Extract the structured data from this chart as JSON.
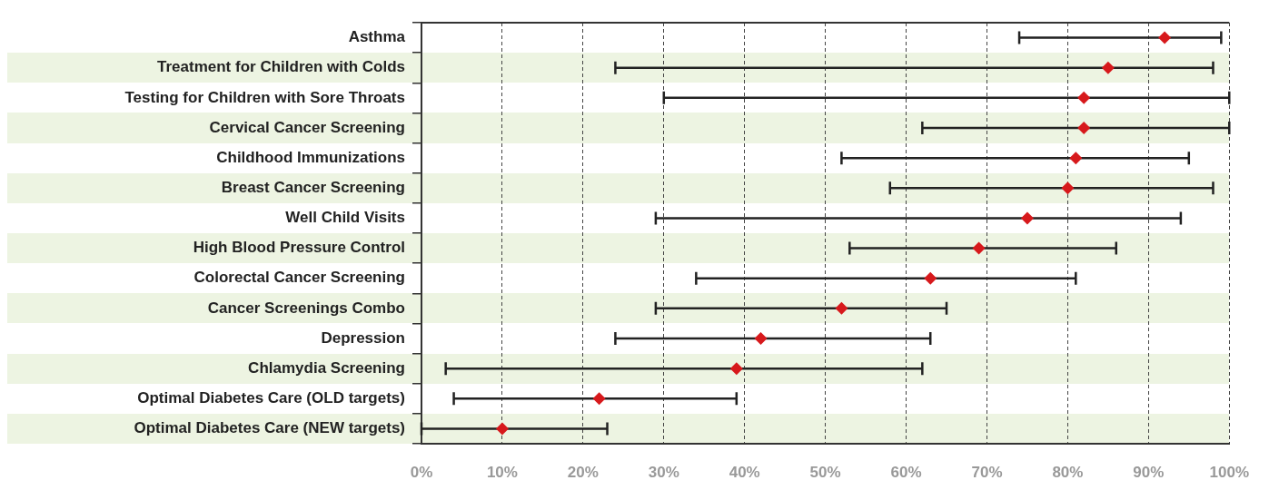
{
  "chart_data": {
    "type": "scatter",
    "orientation": "horizontal",
    "marker": "diamond",
    "grid": "x",
    "line_style": "dashed",
    "legend": false,
    "categories": [
      "Asthma",
      "Treatment for Children with Colds",
      "Testing for Children with Sore Throats",
      "Cervical Cancer Screening",
      "Childhood Immunizations",
      "Breast Cancer Screening",
      "Well Child Visits",
      "High Blood Pressure Control",
      "Colorectal Cancer Screening",
      "Cancer Screenings Combo",
      "Depression",
      "Chlamydia Screening",
      "Optimal Diabetes Care (OLD targets)",
      "Optimal Diabetes Care (NEW targets)"
    ],
    "values": [
      92,
      85,
      82,
      82,
      81,
      80,
      75,
      69,
      63,
      52,
      42,
      39,
      22,
      10
    ],
    "errors": [
      [
        74,
        99
      ],
      [
        24,
        98
      ],
      [
        30,
        100
      ],
      [
        62,
        100
      ],
      [
        52,
        95
      ],
      [
        58,
        98
      ],
      [
        29,
        94
      ],
      [
        53,
        86
      ],
      [
        34,
        81
      ],
      [
        29,
        65
      ],
      [
        24,
        63
      ],
      [
        3,
        62
      ],
      [
        4,
        39
      ],
      [
        0,
        23
      ]
    ],
    "color": "#d7191c",
    "xlim": [
      0,
      100
    ],
    "xticks": [
      {
        "value": 0,
        "label": "0%"
      },
      {
        "value": 10,
        "label": "10%"
      },
      {
        "value": 20,
        "label": "20%"
      },
      {
        "value": 30,
        "label": "30%"
      },
      {
        "value": 40,
        "label": "40%"
      },
      {
        "value": 50,
        "label": "50%"
      },
      {
        "value": 60,
        "label": "60%"
      },
      {
        "value": 70,
        "label": "70%"
      },
      {
        "value": 80,
        "label": "80%"
      },
      {
        "value": 90,
        "label": "90%"
      },
      {
        "value": 100,
        "label": "100%"
      }
    ]
  }
}
